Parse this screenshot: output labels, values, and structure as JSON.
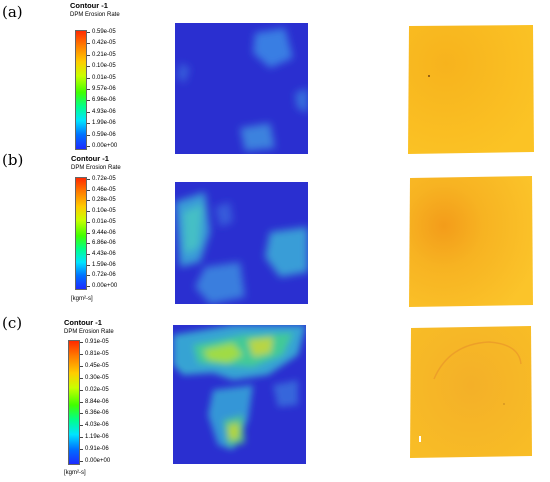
{
  "panels": [
    {
      "label": "(a)",
      "legend_title": "Contour -1",
      "legend_subtitle": "DPM Erosion Rate",
      "unit": "[kgm²-s]",
      "ticks": [
        "0.59e-05",
        "0.42e-05",
        "0.21e-05",
        "0.10e-05",
        "0.01e-05",
        "9.57e-06",
        "6.96e-06",
        "4.93e-06",
        "1.99e-06",
        "0.59e-06",
        "0.00e+00"
      ],
      "contour_color": "#2a2fd0",
      "photo_color": "#f5b414"
    },
    {
      "label": "(b)",
      "legend_title": "Contour -1",
      "legend_subtitle": "DPM Erosion Rate",
      "unit": "[kgm²-s]",
      "ticks": [
        "0.72e-05",
        "0.46e-05",
        "0.28e-05",
        "0.10e-05",
        "0.01e-05",
        "9.44e-06",
        "6.86e-06",
        "4.43e-06",
        "1.59e-06",
        "0.72e-06",
        "0.00e+00"
      ],
      "contour_color": "#2a2fd0",
      "photo_color": "#f7b21a"
    },
    {
      "label": "(c)",
      "legend_title": "Contour -1",
      "legend_subtitle": "DPM Erosion Rate",
      "unit": "[kgm²-s]",
      "ticks": [
        "0.91e-05",
        "0.81e-05",
        "0.45e-05",
        "0.30e-05",
        "0.02e-05",
        "8.84e-06",
        "6.36e-06",
        "4.03e-06",
        "1.19e-06",
        "0.91e-06",
        "0.00e+00"
      ],
      "contour_color": "#2a2fd0",
      "photo_color": "#f5b21c"
    }
  ]
}
